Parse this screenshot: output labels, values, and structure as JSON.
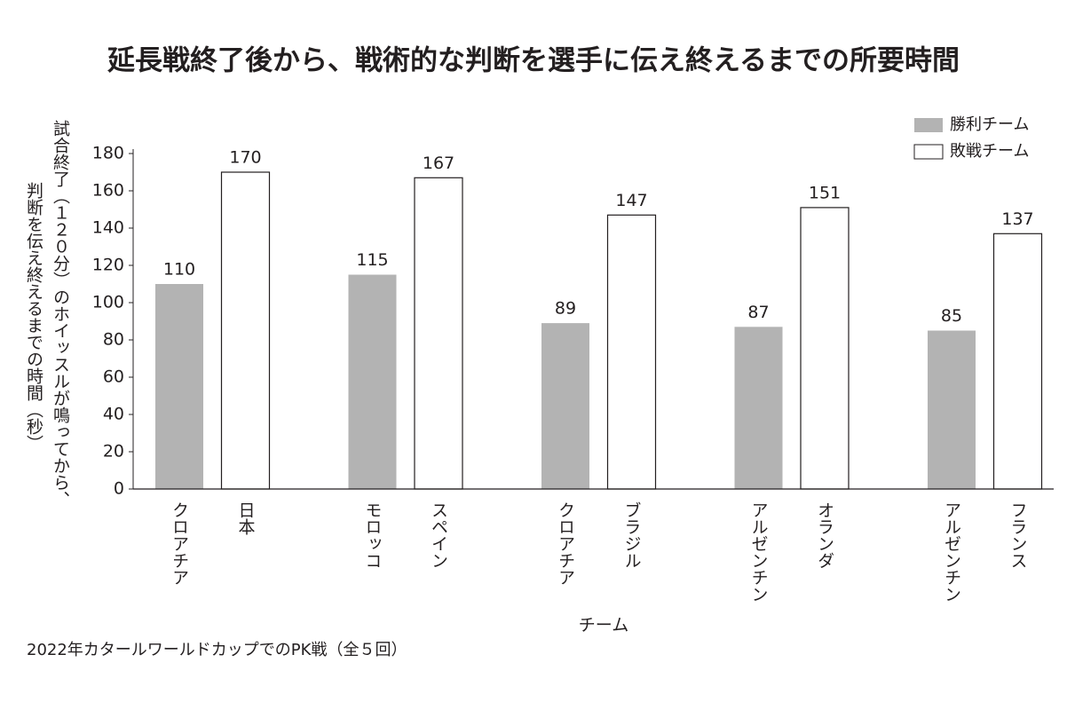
{
  "chart_data": {
    "type": "bar",
    "title": "延長戦終了後から、戦術的な判断を選手に伝え終えるまでの所要時間",
    "ylabel": [
      "試合終了（１２０分）のホイッスルが鳴ってから、",
      "判断を伝え終えるまでの時間（秒）"
    ],
    "xlabel": "チーム",
    "note": "2022年カタールワールドカップでのPK戦（全５回）",
    "series": [
      {
        "name": "勝利チーム",
        "color": "#b3b3b3",
        "labels": [
          "クロアチア",
          "モロッコ",
          "クロアチア",
          "アルゼンチン",
          "アルゼンチン"
        ],
        "values": [
          110,
          115,
          89,
          87,
          85
        ]
      },
      {
        "name": "敗戦チーム",
        "color": "#ffffff",
        "labels": [
          "日本",
          "スペイン",
          "ブラジル",
          "オランダ",
          "フランス"
        ],
        "values": [
          170,
          167,
          147,
          151,
          137
        ]
      }
    ],
    "ylim": [
      0,
      180
    ],
    "yticks": [
      0,
      20,
      40,
      60,
      80,
      100,
      120,
      140,
      160,
      180
    ],
    "legend": "top-right"
  }
}
